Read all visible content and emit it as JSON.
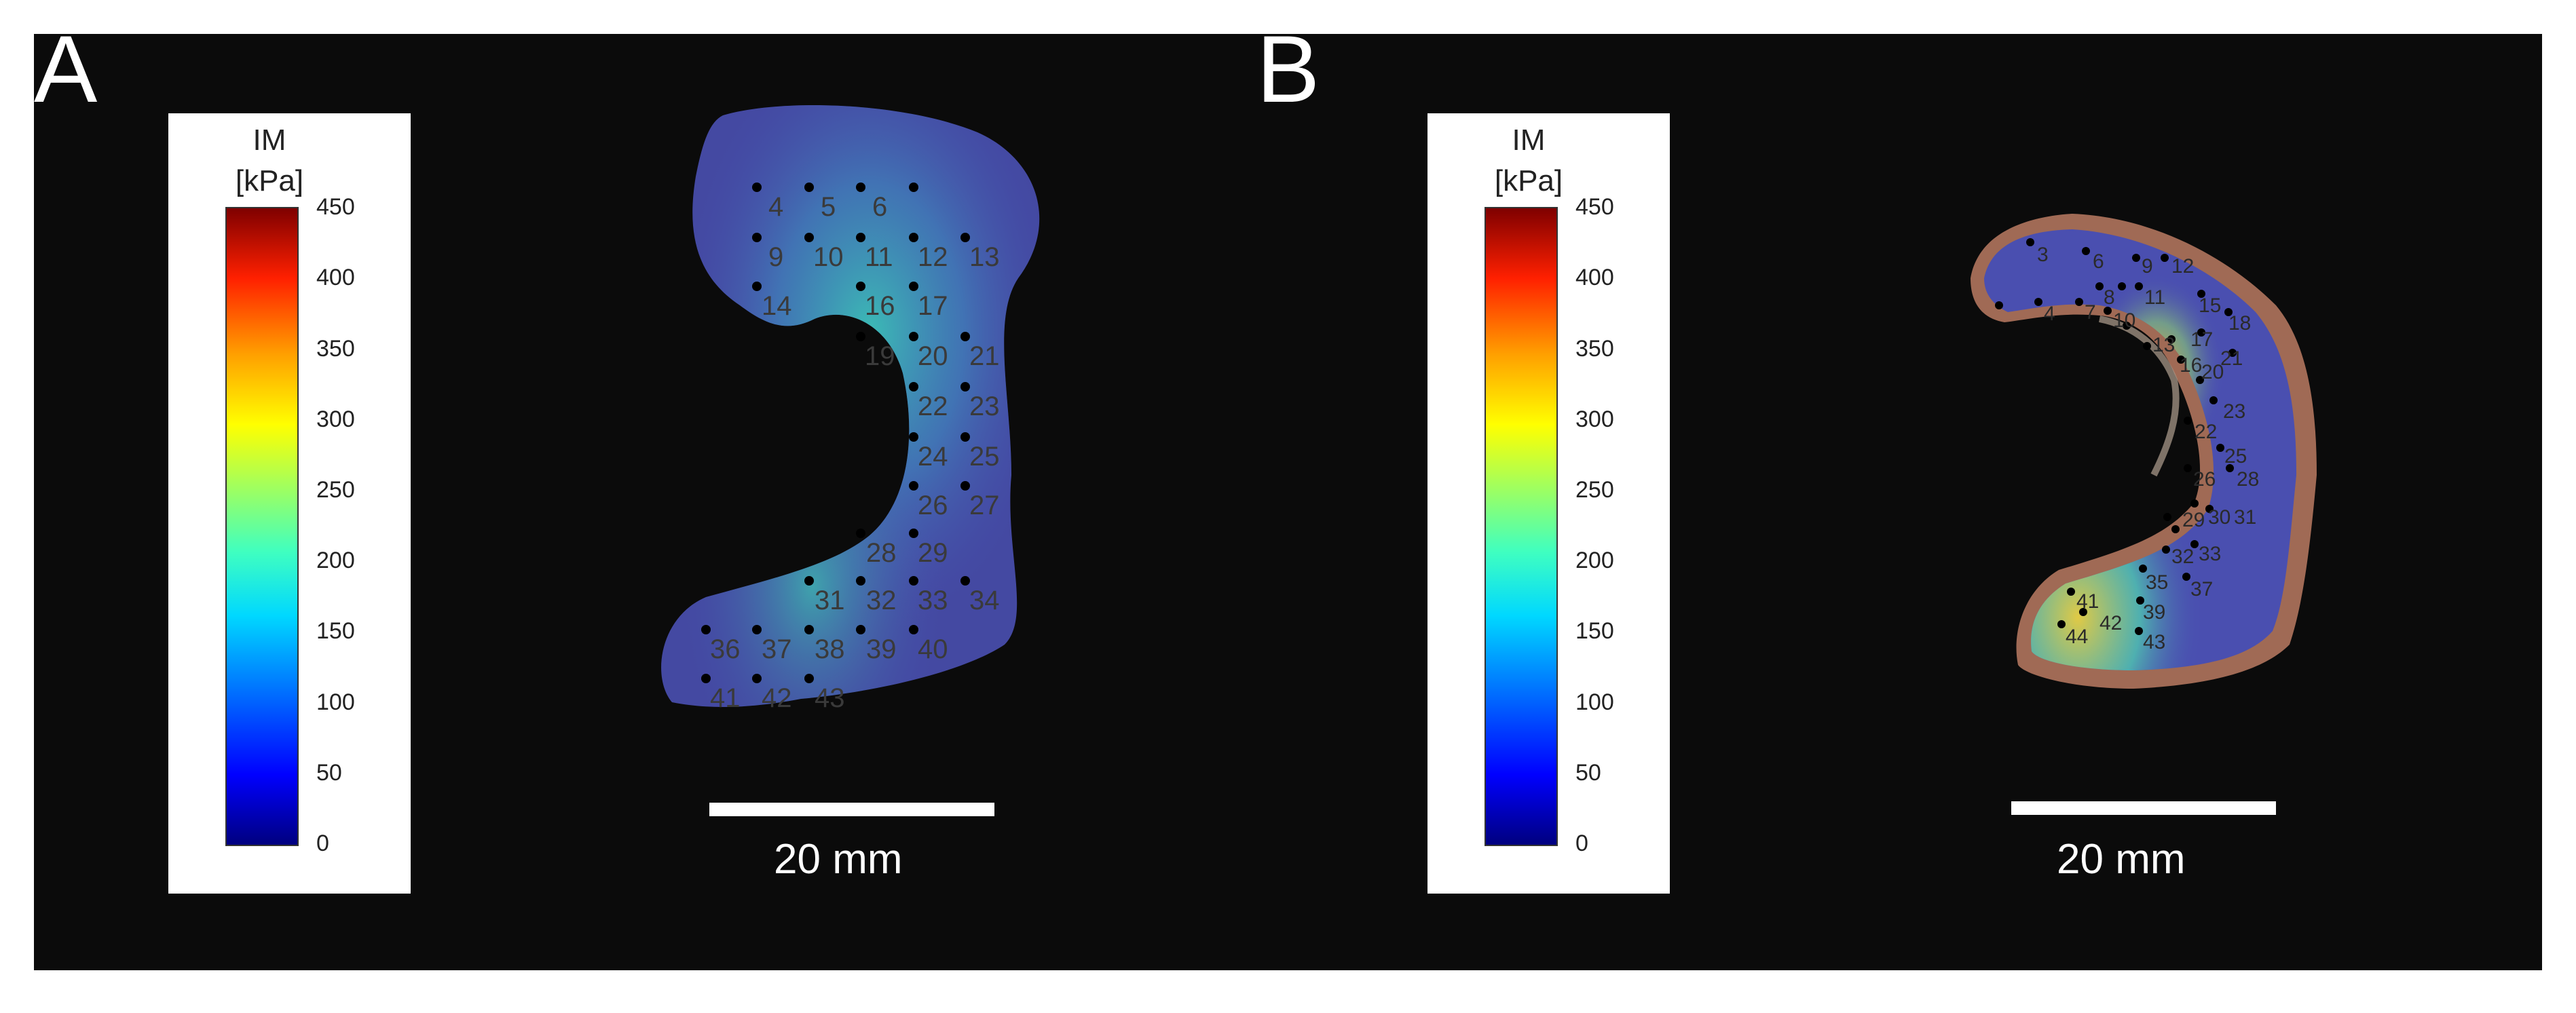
{
  "panels": [
    {
      "label": "A",
      "colorbar": {
        "title_line1": "IM",
        "title_line2": "[kPa]",
        "ticks": [
          "450",
          "400",
          "350",
          "300",
          "250",
          "200",
          "150",
          "100",
          "50",
          "0"
        ]
      },
      "scale_bar_label": "20 mm",
      "point_labels": [
        "4",
        "5",
        "6",
        "9",
        "10",
        "11",
        "12",
        "13",
        "14",
        "16",
        "17",
        "19",
        "20",
        "21",
        "22",
        "23",
        "24",
        "25",
        "26",
        "27",
        "28",
        "29",
        "31",
        "32",
        "33",
        "34",
        "36",
        "37",
        "38",
        "39",
        "40",
        "41",
        "42",
        "43"
      ]
    },
    {
      "label": "B",
      "colorbar": {
        "title_line1": "IM",
        "title_line2": "[kPa]",
        "ticks": [
          "450",
          "400",
          "350",
          "300",
          "250",
          "200",
          "150",
          "100",
          "50",
          "0"
        ]
      },
      "scale_bar_label": "20 mm",
      "point_labels": [
        "3",
        "6",
        "9",
        "12",
        "4",
        "7",
        "8",
        "11",
        "15",
        "18",
        "10",
        "13",
        "17",
        "21",
        "16",
        "20",
        "23",
        "22",
        "25",
        "26",
        "28",
        "29",
        "30",
        "31",
        "32",
        "33",
        "35",
        "37",
        "41",
        "39",
        "42",
        "44",
        "43"
      ]
    }
  ],
  "colors": {
    "background": "#0b0b0b",
    "tissue_blue": "#4a4fb0",
    "tissue_b_rim": "#a06a55"
  }
}
